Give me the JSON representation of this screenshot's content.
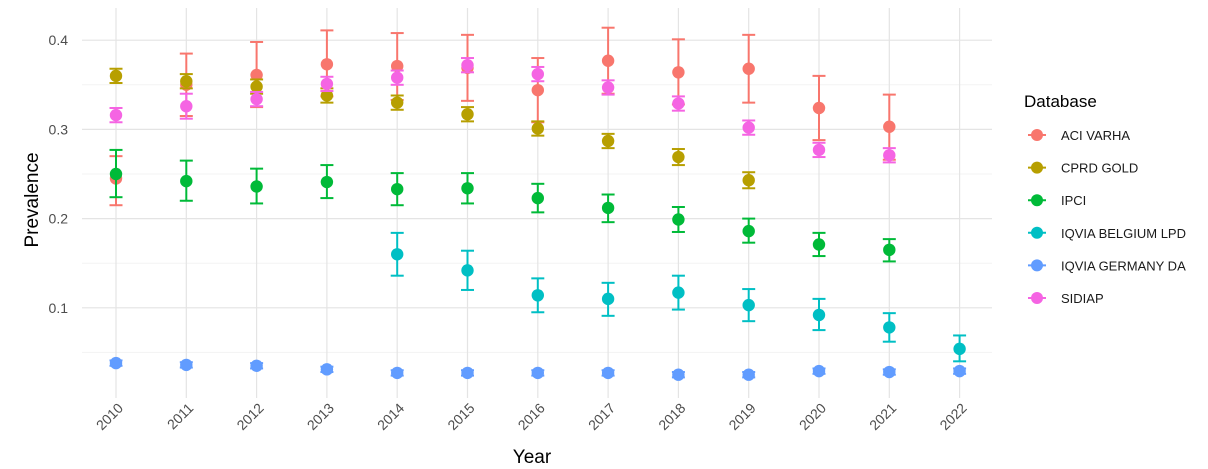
{
  "chart_data": {
    "type": "scatter",
    "title": "",
    "xlabel": "Year",
    "ylabel": "Prevalence",
    "x": [
      2010,
      2011,
      2012,
      2013,
      2014,
      2015,
      2016,
      2017,
      2018,
      2019,
      2020,
      2021,
      2022
    ],
    "xlim": [
      2010,
      2022
    ],
    "ylim": [
      0.0,
      0.42
    ],
    "y_ticks": [
      0.1,
      0.2,
      0.3,
      0.4
    ],
    "y_tick_labels": [
      "0.1",
      "0.2",
      "0.3",
      "0.4"
    ],
    "x_tick_labels": [
      "2010",
      "2011",
      "2012",
      "2013",
      "2014",
      "2015",
      "2016",
      "2017",
      "2018",
      "2019",
      "2020",
      "2021",
      "2022"
    ],
    "grid": true,
    "error_bars": true,
    "legend": {
      "title": "Database",
      "position": "right"
    },
    "series": [
      {
        "name": "ACI VARHA",
        "color": "#F8766D",
        "points": [
          {
            "x": 2010,
            "y": 0.245,
            "lo": 0.215,
            "hi": 0.27
          },
          {
            "x": 2011,
            "y": 0.35,
            "lo": 0.315,
            "hi": 0.385
          },
          {
            "x": 2012,
            "y": 0.361,
            "lo": 0.325,
            "hi": 0.398
          },
          {
            "x": 2013,
            "y": 0.373,
            "lo": 0.337,
            "hi": 0.411
          },
          {
            "x": 2014,
            "y": 0.371,
            "lo": 0.333,
            "hi": 0.408
          },
          {
            "x": 2015,
            "y": 0.369,
            "lo": 0.332,
            "hi": 0.406
          },
          {
            "x": 2016,
            "y": 0.344,
            "lo": 0.308,
            "hi": 0.38
          },
          {
            "x": 2017,
            "y": 0.377,
            "lo": 0.34,
            "hi": 0.414
          },
          {
            "x": 2018,
            "y": 0.364,
            "lo": 0.328,
            "hi": 0.401
          },
          {
            "x": 2019,
            "y": 0.368,
            "lo": 0.33,
            "hi": 0.406
          },
          {
            "x": 2020,
            "y": 0.324,
            "lo": 0.288,
            "hi": 0.36
          },
          {
            "x": 2021,
            "y": 0.303,
            "lo": 0.266,
            "hi": 0.339
          }
        ]
      },
      {
        "name": "CPRD GOLD",
        "color": "#B79F00",
        "points": [
          {
            "x": 2010,
            "y": 0.36,
            "lo": 0.352,
            "hi": 0.368
          },
          {
            "x": 2011,
            "y": 0.354,
            "lo": 0.346,
            "hi": 0.362
          },
          {
            "x": 2012,
            "y": 0.348,
            "lo": 0.34,
            "hi": 0.356
          },
          {
            "x": 2013,
            "y": 0.338,
            "lo": 0.33,
            "hi": 0.346
          },
          {
            "x": 2014,
            "y": 0.33,
            "lo": 0.322,
            "hi": 0.338
          },
          {
            "x": 2015,
            "y": 0.317,
            "lo": 0.309,
            "hi": 0.325
          },
          {
            "x": 2016,
            "y": 0.301,
            "lo": 0.293,
            "hi": 0.309
          },
          {
            "x": 2017,
            "y": 0.287,
            "lo": 0.279,
            "hi": 0.295
          },
          {
            "x": 2018,
            "y": 0.269,
            "lo": 0.26,
            "hi": 0.278
          },
          {
            "x": 2019,
            "y": 0.243,
            "lo": 0.234,
            "hi": 0.252
          }
        ]
      },
      {
        "name": "IPCI",
        "color": "#00BA38",
        "points": [
          {
            "x": 2010,
            "y": 0.25,
            "lo": 0.224,
            "hi": 0.277
          },
          {
            "x": 2011,
            "y": 0.242,
            "lo": 0.22,
            "hi": 0.265
          },
          {
            "x": 2012,
            "y": 0.236,
            "lo": 0.217,
            "hi": 0.256
          },
          {
            "x": 2013,
            "y": 0.241,
            "lo": 0.223,
            "hi": 0.26
          },
          {
            "x": 2014,
            "y": 0.233,
            "lo": 0.215,
            "hi": 0.251
          },
          {
            "x": 2015,
            "y": 0.234,
            "lo": 0.217,
            "hi": 0.251
          },
          {
            "x": 2016,
            "y": 0.223,
            "lo": 0.207,
            "hi": 0.239
          },
          {
            "x": 2017,
            "y": 0.212,
            "lo": 0.196,
            "hi": 0.227
          },
          {
            "x": 2018,
            "y": 0.199,
            "lo": 0.185,
            "hi": 0.213
          },
          {
            "x": 2019,
            "y": 0.186,
            "lo": 0.173,
            "hi": 0.2
          },
          {
            "x": 2020,
            "y": 0.171,
            "lo": 0.158,
            "hi": 0.184
          },
          {
            "x": 2021,
            "y": 0.165,
            "lo": 0.152,
            "hi": 0.177
          }
        ]
      },
      {
        "name": "IQVIA BELGIUM LPD",
        "color": "#00BFC4",
        "points": [
          {
            "x": 2014,
            "y": 0.16,
            "lo": 0.136,
            "hi": 0.184
          },
          {
            "x": 2015,
            "y": 0.142,
            "lo": 0.12,
            "hi": 0.164
          },
          {
            "x": 2016,
            "y": 0.114,
            "lo": 0.095,
            "hi": 0.133
          },
          {
            "x": 2017,
            "y": 0.11,
            "lo": 0.091,
            "hi": 0.128
          },
          {
            "x": 2018,
            "y": 0.117,
            "lo": 0.098,
            "hi": 0.136
          },
          {
            "x": 2019,
            "y": 0.103,
            "lo": 0.085,
            "hi": 0.121
          },
          {
            "x": 2020,
            "y": 0.092,
            "lo": 0.075,
            "hi": 0.11
          },
          {
            "x": 2021,
            "y": 0.078,
            "lo": 0.062,
            "hi": 0.094
          },
          {
            "x": 2022,
            "y": 0.054,
            "lo": 0.04,
            "hi": 0.069
          }
        ]
      },
      {
        "name": "IQVIA GERMANY DA",
        "color": "#619CFF",
        "points": [
          {
            "x": 2010,
            "y": 0.038,
            "lo": 0.035,
            "hi": 0.041
          },
          {
            "x": 2011,
            "y": 0.036,
            "lo": 0.033,
            "hi": 0.039
          },
          {
            "x": 2012,
            "y": 0.035,
            "lo": 0.032,
            "hi": 0.038
          },
          {
            "x": 2013,
            "y": 0.031,
            "lo": 0.028,
            "hi": 0.034
          },
          {
            "x": 2014,
            "y": 0.027,
            "lo": 0.024,
            "hi": 0.03
          },
          {
            "x": 2015,
            "y": 0.027,
            "lo": 0.024,
            "hi": 0.03
          },
          {
            "x": 2016,
            "y": 0.027,
            "lo": 0.024,
            "hi": 0.03
          },
          {
            "x": 2017,
            "y": 0.027,
            "lo": 0.024,
            "hi": 0.03
          },
          {
            "x": 2018,
            "y": 0.025,
            "lo": 0.022,
            "hi": 0.028
          },
          {
            "x": 2019,
            "y": 0.025,
            "lo": 0.022,
            "hi": 0.028
          },
          {
            "x": 2020,
            "y": 0.029,
            "lo": 0.026,
            "hi": 0.032
          },
          {
            "x": 2021,
            "y": 0.028,
            "lo": 0.025,
            "hi": 0.031
          },
          {
            "x": 2022,
            "y": 0.029,
            "lo": 0.026,
            "hi": 0.032
          }
        ]
      },
      {
        "name": "SIDIAP",
        "color": "#F564E3",
        "points": [
          {
            "x": 2010,
            "y": 0.316,
            "lo": 0.308,
            "hi": 0.324
          },
          {
            "x": 2011,
            "y": 0.326,
            "lo": 0.312,
            "hi": 0.34
          },
          {
            "x": 2012,
            "y": 0.334,
            "lo": 0.326,
            "hi": 0.342
          },
          {
            "x": 2013,
            "y": 0.351,
            "lo": 0.343,
            "hi": 0.359
          },
          {
            "x": 2014,
            "y": 0.358,
            "lo": 0.35,
            "hi": 0.366
          },
          {
            "x": 2015,
            "y": 0.372,
            "lo": 0.364,
            "hi": 0.38
          },
          {
            "x": 2016,
            "y": 0.362,
            "lo": 0.354,
            "hi": 0.37
          },
          {
            "x": 2017,
            "y": 0.347,
            "lo": 0.339,
            "hi": 0.355
          },
          {
            "x": 2018,
            "y": 0.329,
            "lo": 0.321,
            "hi": 0.337
          },
          {
            "x": 2019,
            "y": 0.302,
            "lo": 0.294,
            "hi": 0.31
          },
          {
            "x": 2020,
            "y": 0.277,
            "lo": 0.269,
            "hi": 0.285
          },
          {
            "x": 2021,
            "y": 0.271,
            "lo": 0.263,
            "hi": 0.279
          }
        ]
      }
    ]
  }
}
